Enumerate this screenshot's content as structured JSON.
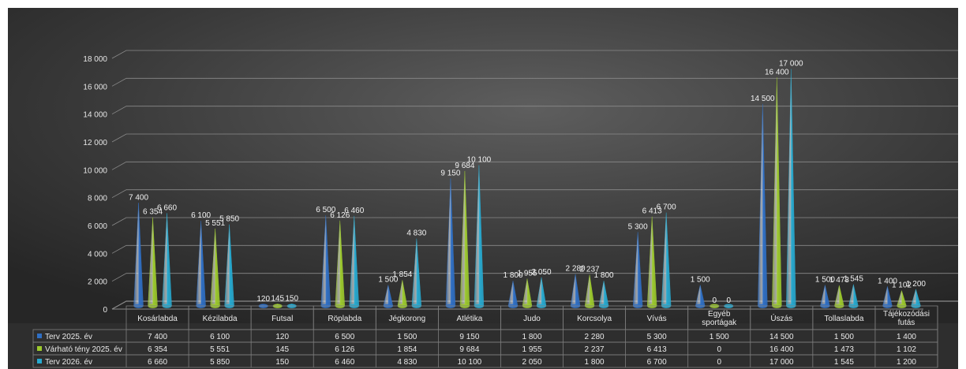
{
  "chart_data": {
    "type": "bar",
    "title": "",
    "xlabel": "",
    "ylabel": "",
    "ylim": [
      0,
      18000
    ],
    "yticks": [
      "0",
      "2 000",
      "4 000",
      "6 000",
      "8 000",
      "10 000",
      "12 000",
      "14 000",
      "16 000",
      "18 000"
    ],
    "grid": true,
    "categories": [
      "Kosárlabda",
      "Kézilabda",
      "Futsal",
      "Röplabda",
      "Jégkorong",
      "Atlétika",
      "Judo",
      "Korcsolya",
      "Vívás",
      "Egyéb sportágak",
      "Úszás",
      "Tollaslabda",
      "Tájékozódási futás"
    ],
    "series": [
      {
        "name": "Terv 2025. év",
        "color": "#2f6fc4",
        "values": [
          7400,
          6100,
          120,
          6500,
          1500,
          9150,
          1800,
          2280,
          5300,
          1500,
          14500,
          1500,
          1400
        ],
        "labels": [
          "7 400",
          "6 100",
          "120",
          "6 500",
          "1 500",
          "9 150",
          "1 800",
          "2 280",
          "5 300",
          "1 500",
          "14 500",
          "1 500",
          "1 400"
        ]
      },
      {
        "name": "Várható tény 2025. év",
        "color": "#9cc92d",
        "values": [
          6354,
          5551,
          145,
          6126,
          1854,
          9684,
          1955,
          2237,
          6413,
          0,
          16400,
          1473,
          1102
        ],
        "labels": [
          "6 354",
          "5 551",
          "145",
          "6 126",
          "1 854",
          "9 684",
          "1 955",
          "2 237",
          "6 413",
          "0",
          "16 400",
          "1 473",
          "1 102"
        ]
      },
      {
        "name": "Terv 2026. év",
        "color": "#27a9cf",
        "values": [
          6660,
          5850,
          150,
          6460,
          4830,
          10100,
          2050,
          1800,
          6700,
          0,
          17000,
          1545,
          1200
        ],
        "labels": [
          "6 660",
          "5 850",
          "150",
          "6 460",
          "4 830",
          "10 100",
          "2 050",
          "1 800",
          "6 700",
          "0",
          "17 000",
          "1 545",
          "1 200"
        ]
      }
    ]
  }
}
